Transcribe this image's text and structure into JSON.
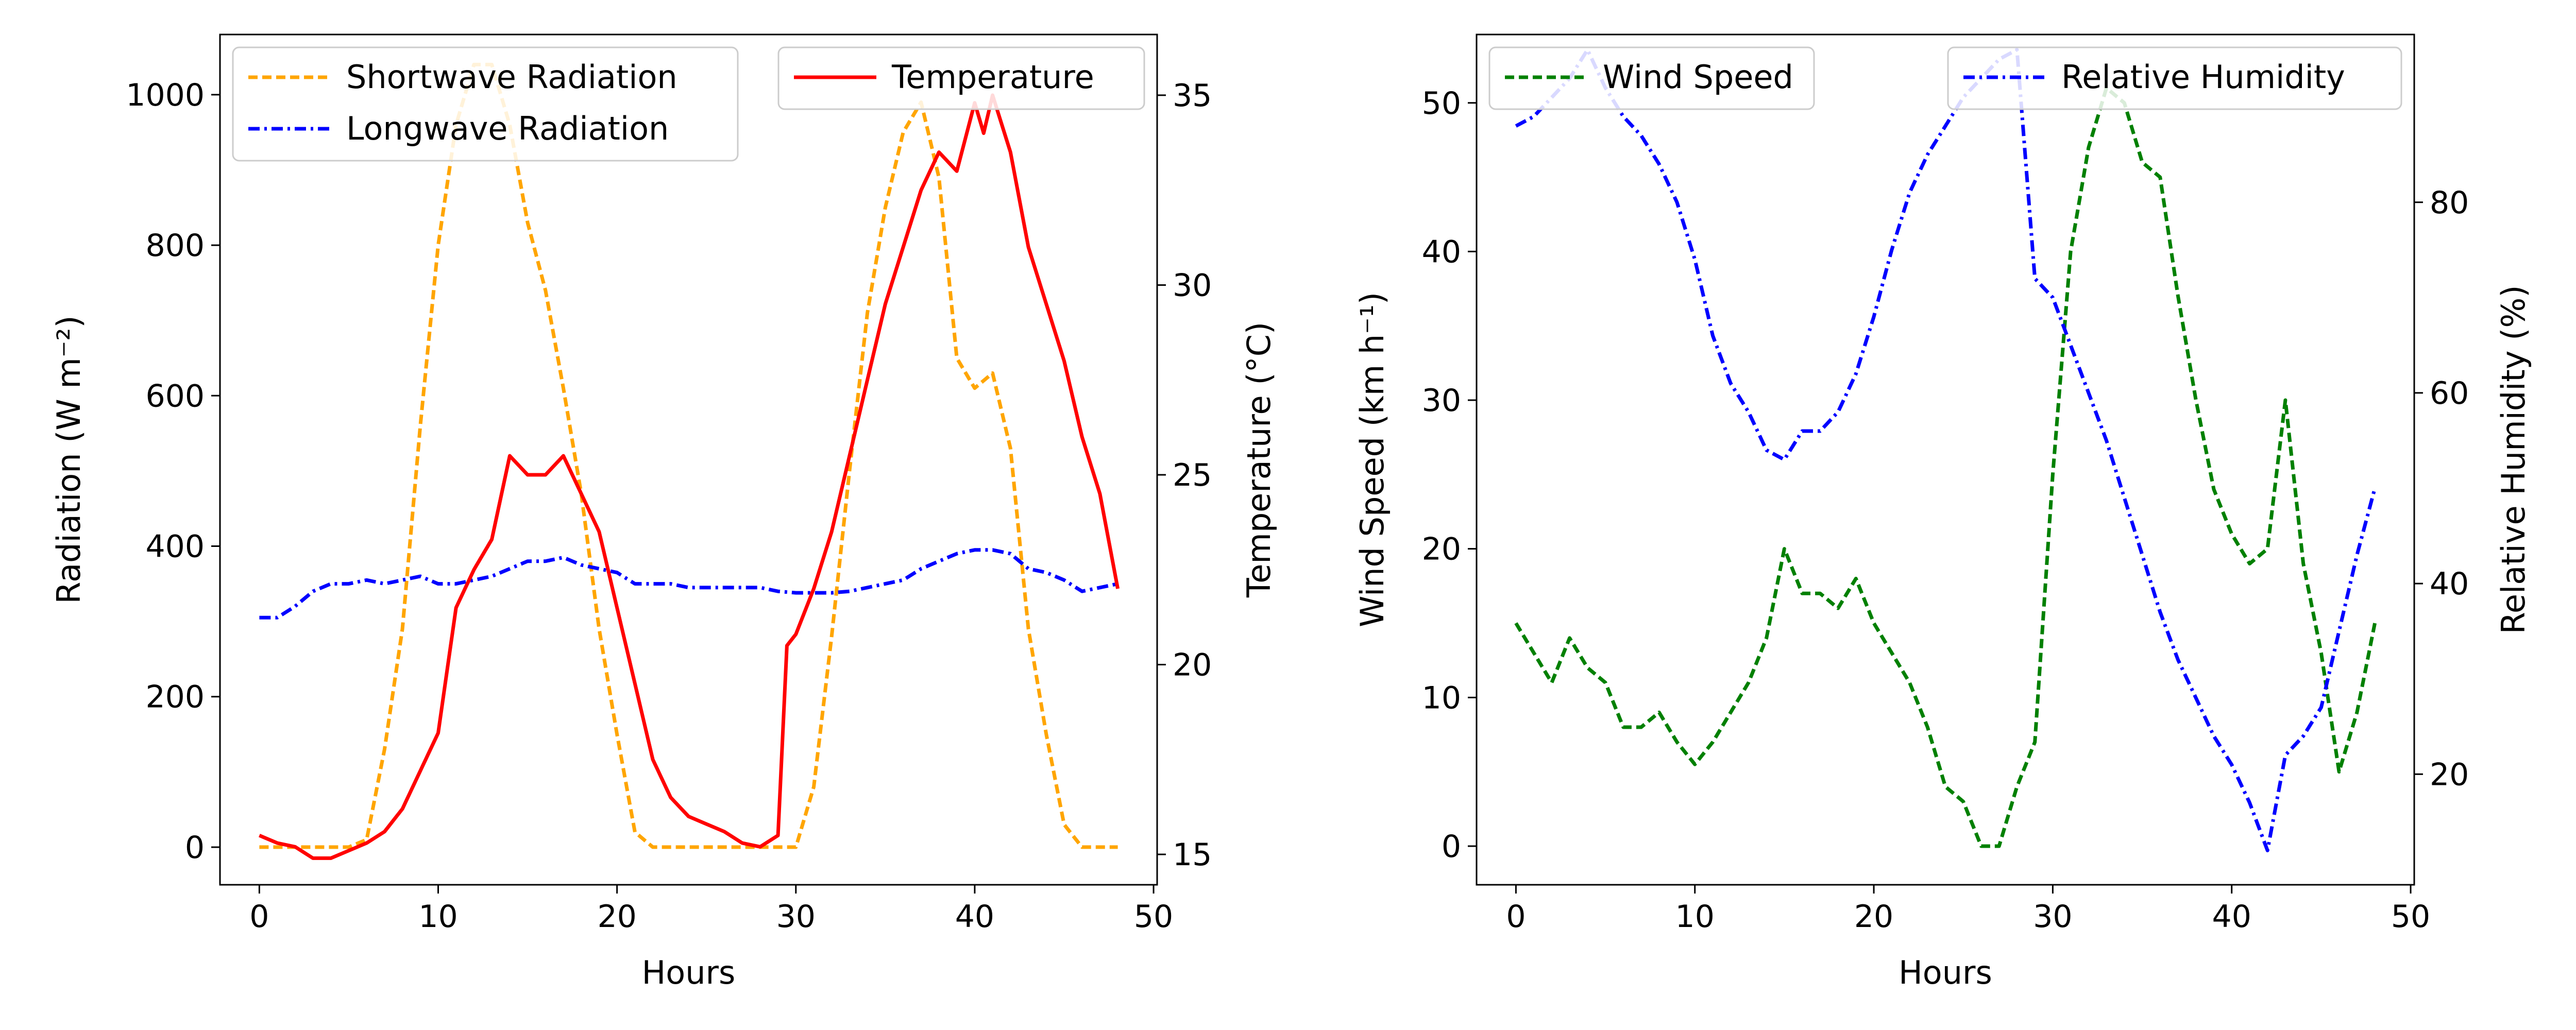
{
  "chart_data": [
    {
      "type": "line",
      "title": "",
      "xlabel": "Hours",
      "ylabel_left": "Radiation (W m⁻²)",
      "ylabel_right": "Temperature (°C)",
      "xlim": [
        -2.2,
        50.2
      ],
      "ylim_left": [
        -50,
        1080
      ],
      "ylim_right": [
        14.2,
        36.6
      ],
      "xticks": [
        0,
        10,
        20,
        30,
        40,
        50
      ],
      "yticks_left": [
        0,
        200,
        400,
        600,
        800,
        1000
      ],
      "yticks_right": [
        15,
        20,
        25,
        30,
        35
      ],
      "legends": [
        {
          "placement": "upper-left",
          "entries": [
            "Shortwave Radiation",
            "Longwave Radiation"
          ]
        },
        {
          "placement": "upper-right",
          "entries": [
            "Temperature"
          ]
        }
      ],
      "series": [
        {
          "name": "Shortwave Radiation",
          "axis": "left",
          "color": "#ffa500",
          "dash": "dashed",
          "x": [
            0,
            1,
            2,
            3,
            4,
            5,
            6,
            7,
            8,
            9,
            10,
            11,
            12,
            13,
            14,
            15,
            16,
            17,
            18,
            19,
            20,
            21,
            22,
            23,
            24,
            25,
            26,
            27,
            28,
            29,
            30,
            31,
            32,
            33,
            34,
            35,
            36,
            37,
            38,
            39,
            40,
            41,
            42,
            43,
            44,
            45,
            46,
            47,
            48
          ],
          "y": [
            0,
            0,
            0,
            0,
            0,
            0,
            10,
            130,
            290,
            560,
            800,
            960,
            1040,
            1040,
            960,
            830,
            740,
            610,
            470,
            290,
            150,
            20,
            0,
            0,
            0,
            0,
            0,
            0,
            0,
            0,
            0,
            80,
            280,
            500,
            710,
            850,
            950,
            990,
            890,
            650,
            610,
            630,
            530,
            290,
            150,
            30,
            0,
            0,
            0
          ]
        },
        {
          "name": "Longwave Radiation",
          "axis": "left",
          "color": "#0000ff",
          "dash": "dashdot",
          "x": [
            0,
            1,
            2,
            3,
            4,
            5,
            6,
            7,
            8,
            9,
            10,
            11,
            12,
            13,
            14,
            15,
            16,
            17,
            18,
            19,
            20,
            21,
            22,
            23,
            24,
            25,
            26,
            27,
            28,
            29,
            30,
            31,
            32,
            33,
            34,
            35,
            36,
            37,
            38,
            39,
            40,
            41,
            42,
            43,
            44,
            45,
            46,
            47,
            48
          ],
          "y": [
            305,
            305,
            320,
            340,
            350,
            350,
            355,
            350,
            355,
            360,
            350,
            350,
            355,
            360,
            370,
            380,
            380,
            385,
            375,
            370,
            365,
            350,
            350,
            350,
            345,
            345,
            345,
            345,
            345,
            340,
            338,
            338,
            338,
            340,
            345,
            350,
            355,
            370,
            380,
            390,
            395,
            395,
            390,
            370,
            365,
            355,
            340,
            345,
            350
          ]
        },
        {
          "name": "Temperature",
          "axis": "right",
          "color": "#ff0000",
          "dash": "solid",
          "x": [
            0,
            1,
            2,
            3,
            4,
            5,
            6,
            7,
            8,
            9,
            10,
            11,
            12,
            13,
            14,
            15,
            16,
            17,
            18,
            19,
            20,
            21,
            22,
            23,
            24,
            25,
            26,
            27,
            28,
            29,
            29.5,
            30,
            31,
            32,
            33,
            34,
            35,
            36,
            37,
            38,
            39,
            40,
            40.5,
            41,
            42,
            43,
            44,
            45,
            46,
            47,
            48
          ],
          "y": [
            15.5,
            15.3,
            15.2,
            14.9,
            14.9,
            15.1,
            15.3,
            15.6,
            16.2,
            17.2,
            18.2,
            21.5,
            22.5,
            23.3,
            25.5,
            25,
            25,
            25.5,
            24.5,
            23.5,
            21.5,
            19.5,
            17.5,
            16.5,
            16,
            15.8,
            15.6,
            15.3,
            15.2,
            15.5,
            20.5,
            20.8,
            22,
            23.5,
            25.5,
            27.5,
            29.5,
            31,
            32.5,
            33.5,
            33,
            34.8,
            34,
            35,
            33.5,
            31,
            29.5,
            28,
            26,
            24.5,
            22
          ]
        }
      ]
    },
    {
      "type": "line",
      "title": "",
      "xlabel": "Hours",
      "ylabel_left": "Wind Speed (km h⁻¹)",
      "ylabel_right": "Relative Humidity (%)",
      "xlim": [
        -2.2,
        50.2
      ],
      "ylim_left": [
        -2.6,
        54.6
      ],
      "ylim_right": [
        8.4,
        97.6
      ],
      "xticks": [
        0,
        10,
        20,
        30,
        40,
        50
      ],
      "yticks_left": [
        0,
        10,
        20,
        30,
        40,
        50
      ],
      "yticks_right": [
        20,
        40,
        60,
        80
      ],
      "legends": [
        {
          "placement": "upper-left",
          "entries": [
            "Wind Speed"
          ]
        },
        {
          "placement": "upper-right",
          "entries": [
            "Relative Humidity"
          ]
        }
      ],
      "series": [
        {
          "name": "Wind Speed",
          "axis": "left",
          "color": "#008000",
          "dash": "dashed",
          "x": [
            0,
            1,
            2,
            3,
            4,
            5,
            6,
            7,
            8,
            9,
            10,
            11,
            12,
            13,
            14,
            15,
            16,
            17,
            18,
            19,
            20,
            21,
            22,
            23,
            24,
            25,
            26,
            27,
            28,
            29,
            30,
            31,
            32,
            33,
            34,
            35,
            36,
            37,
            38,
            39,
            40,
            41,
            42,
            43,
            44,
            45,
            46,
            47,
            48
          ],
          "y": [
            15,
            13,
            11,
            14,
            12,
            11,
            8,
            8,
            9,
            7,
            5.5,
            7,
            9,
            11,
            14,
            20,
            17,
            17,
            16,
            18,
            15,
            13,
            11,
            8,
            4,
            3,
            0,
            0,
            4,
            7,
            25,
            40,
            47,
            51,
            50,
            46,
            45,
            37,
            30,
            24,
            21,
            19,
            20,
            30,
            19,
            13,
            5,
            9,
            15
          ]
        },
        {
          "name": "Relative Humidity",
          "axis": "right",
          "color": "#0000ff",
          "dash": "dashdot",
          "x": [
            0,
            1,
            2,
            3,
            4,
            5,
            6,
            7,
            8,
            9,
            10,
            11,
            12,
            13,
            14,
            15,
            16,
            17,
            18,
            19,
            20,
            21,
            22,
            23,
            24,
            25,
            26,
            27,
            28,
            29,
            30,
            31,
            32,
            33,
            34,
            35,
            36,
            37,
            38,
            39,
            40,
            41,
            42,
            43,
            44,
            45,
            46,
            47,
            48
          ],
          "y": [
            88,
            89,
            91,
            93,
            96,
            92,
            89,
            87,
            84,
            80,
            74,
            66,
            61,
            58,
            54,
            53,
            56,
            56,
            58,
            62,
            68,
            75,
            81,
            85,
            88,
            91,
            93,
            95,
            96,
            72,
            70,
            65,
            60,
            55,
            49,
            43,
            37,
            32,
            28,
            24,
            21,
            17,
            12,
            22,
            24,
            27,
            35,
            43,
            50
          ]
        }
      ]
    }
  ]
}
